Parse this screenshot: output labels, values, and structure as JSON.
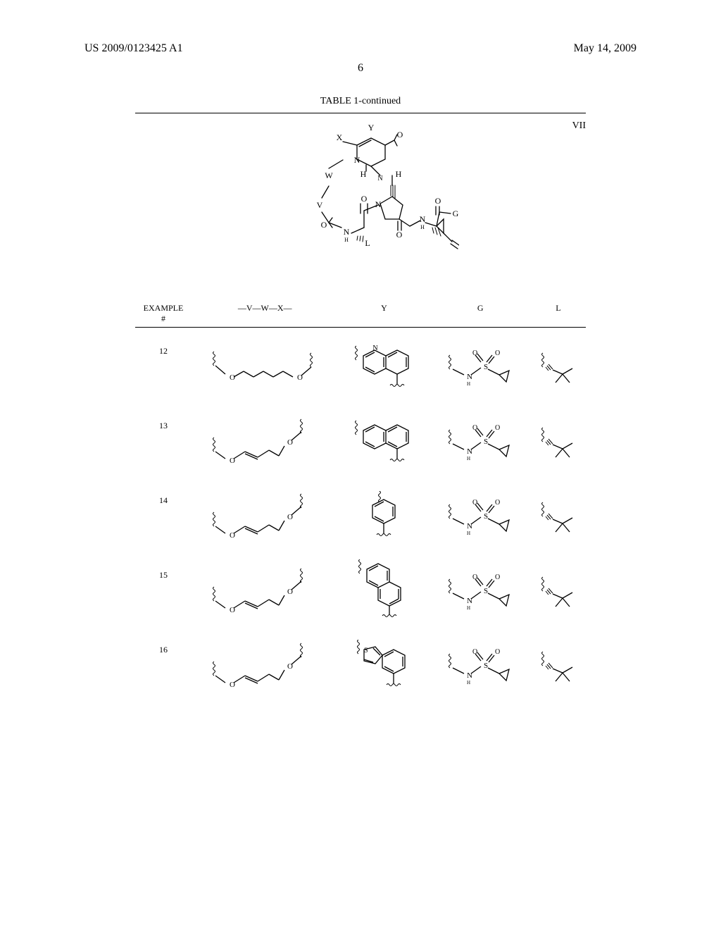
{
  "header": {
    "pub_no": "US 2009/0123425 A1",
    "date": "May 14, 2009"
  },
  "page_number": "6",
  "table": {
    "title": "TABLE 1-continued",
    "roman": "VII",
    "scaffold_labels": {
      "Y": "Y",
      "X": "X",
      "W": "W",
      "V": "V",
      "O_top": "O",
      "H1": "H",
      "H2": "H",
      "N_ring": "N",
      "N_amide": "N",
      "O_amide1": "O",
      "O_amide2": "O",
      "NH_bot": "N",
      "H_bot": "H",
      "L": "L",
      "O_carb": "O",
      "N_sub": "N",
      "H_sub": "H",
      "G": "G",
      "O_sub": "O"
    },
    "columns": {
      "example": "EXAMPLE\n#",
      "vwx": "—V—W—X—",
      "y": "Y",
      "g": "G",
      "l": "L"
    },
    "rows": [
      {
        "ex": "12",
        "vwx_type": "sat",
        "y_type": "quinoline",
        "g_type": "sulfonamide",
        "l_type": "tbu"
      },
      {
        "ex": "13",
        "vwx_type": "alkene",
        "y_type": "naphthalene1",
        "g_type": "sulfonamide",
        "l_type": "tbu"
      },
      {
        "ex": "14",
        "vwx_type": "alkene",
        "y_type": "phenyl",
        "g_type": "sulfonamide",
        "l_type": "tbu"
      },
      {
        "ex": "15",
        "vwx_type": "alkene",
        "y_type": "naphthalene2",
        "g_type": "sulfonamide",
        "l_type": "tbu"
      },
      {
        "ex": "16",
        "vwx_type": "alkene",
        "y_type": "benzothiophene",
        "g_type": "sulfonamide",
        "l_type": "tbu"
      }
    ]
  },
  "chem_labels": {
    "O": "O",
    "N": "N",
    "H": "H",
    "S": "S"
  },
  "style": {
    "bond_width": 1.3,
    "font_main": 16,
    "font_small": 12,
    "font_tiny": 10,
    "font_sub": 8,
    "bg": "#ffffff",
    "fg": "#000000"
  }
}
